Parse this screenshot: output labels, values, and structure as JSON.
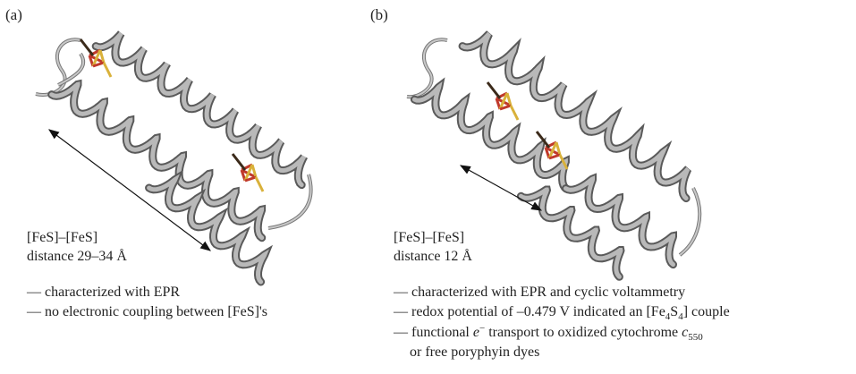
{
  "panels": [
    {
      "label": "(a)",
      "distance_title": "[FeS]–[FeS]",
      "distance_text": "distance 29–34 Å",
      "notes": [
        [
          "— characterized with EPR"
        ],
        [
          "— no electronic coupling between [FeS]'s"
        ]
      ]
    },
    {
      "label": "(b)",
      "distance_title": "[FeS]–[FeS]",
      "distance_text": "distance 12 Å",
      "notes": [
        [
          "— characterized with EPR and cyclic voltammetry"
        ],
        [
          "— redox potential of –0.479 V indicated an [Fe",
          "4",
          "S",
          "4",
          "] couple"
        ],
        [
          "— functional ",
          "e",
          "−",
          " transport to oxidized cytochrome ",
          "c",
          "550"
        ],
        [
          "or free poryphyin dyes"
        ]
      ]
    }
  ]
}
